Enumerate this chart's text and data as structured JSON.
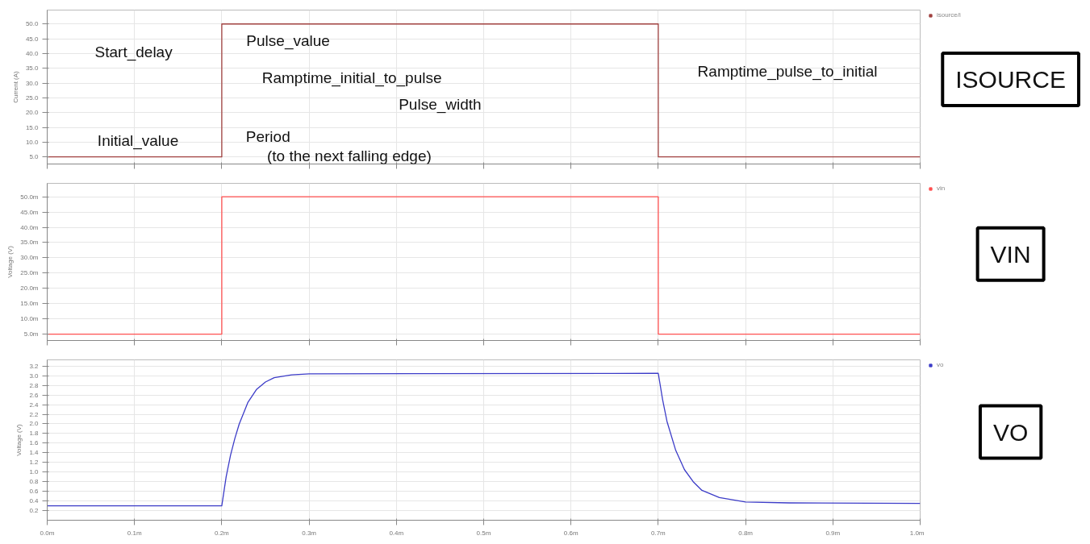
{
  "chart_data": [
    {
      "type": "line",
      "ylabel": "Current (A)",
      "x": [
        0,
        0.2,
        0.2,
        0.7,
        0.7,
        1.0
      ],
      "series": [
        {
          "name": "isource/i",
          "color": "#a0403f",
          "values": [
            5,
            5,
            50,
            50,
            5,
            5
          ]
        }
      ],
      "xlim": [
        0,
        1.0
      ],
      "xticks": [
        0,
        0.1,
        0.2,
        0.3,
        0.4,
        0.5,
        0.6,
        0.7,
        0.8,
        0.9,
        1.0
      ],
      "ylim": [
        2.6,
        54.7
      ],
      "yticks": [
        {
          "value": 5,
          "label": "5.0"
        },
        {
          "value": 10,
          "label": "10.0"
        },
        {
          "value": 15,
          "label": "15.0"
        },
        {
          "value": 20,
          "label": "20.0"
        },
        {
          "value": 25,
          "label": "25.0"
        },
        {
          "value": 30,
          "label": "30.0"
        },
        {
          "value": 35,
          "label": "35.0"
        },
        {
          "value": 40,
          "label": "40.0"
        },
        {
          "value": 45,
          "label": "45.0"
        },
        {
          "value": 50,
          "label": "50.0"
        }
      ],
      "grid": true,
      "legend": "top right",
      "tick_labels": "y",
      "annotations": [
        "Start_delay",
        "Pulse_value",
        "Ramptime_initial_to_pulse",
        "Ramptime_pulse_to_initial",
        "Pulse_width",
        "Initial_value",
        "Period",
        "(to the next falling edge)",
        "ISOURCE"
      ]
    },
    {
      "type": "line",
      "ylabel": "Voltage (V)",
      "x": [
        0,
        0.2,
        0.2,
        0.7,
        0.7,
        1.0
      ],
      "series": [
        {
          "name": "vin",
          "color": "#ff5050",
          "values": [
            5,
            5,
            50,
            50,
            5,
            5
          ]
        }
      ],
      "xlim": [
        0,
        1.0
      ],
      "xticks": [
        0,
        0.1,
        0.2,
        0.3,
        0.4,
        0.5,
        0.6,
        0.7,
        0.8,
        0.9,
        1.0
      ],
      "ylim": [
        2.9,
        54.4
      ],
      "yticks": [
        {
          "value": 5,
          "label": "5.0m"
        },
        {
          "value": 10,
          "label": "10.0m"
        },
        {
          "value": 15,
          "label": "15.0m"
        },
        {
          "value": 20,
          "label": "20.0m"
        },
        {
          "value": 25,
          "label": "25.0m"
        },
        {
          "value": 30,
          "label": "30.0m"
        },
        {
          "value": 35,
          "label": "35.0m"
        },
        {
          "value": 40,
          "label": "40.0m"
        },
        {
          "value": 45,
          "label": "45.0m"
        },
        {
          "value": 50,
          "label": "50.0m"
        }
      ],
      "grid": true,
      "legend": "top right",
      "tick_labels": "y",
      "annotations": [
        "VIN"
      ]
    },
    {
      "type": "line",
      "ylabel": "Voltage (V)",
      "x": [
        0,
        0.2,
        0.205,
        0.21,
        0.215,
        0.22,
        0.23,
        0.24,
        0.25,
        0.26,
        0.28,
        0.3,
        0.7,
        0.705,
        0.71,
        0.72,
        0.73,
        0.74,
        0.75,
        0.77,
        0.8,
        0.85,
        1.0
      ],
      "series": [
        {
          "name": "vo",
          "color": "#3c3cc8",
          "values": [
            0.3,
            0.3,
            0.9,
            1.35,
            1.7,
            2.0,
            2.45,
            2.72,
            2.87,
            2.96,
            3.02,
            3.04,
            3.05,
            2.5,
            2.05,
            1.45,
            1.05,
            0.8,
            0.62,
            0.47,
            0.38,
            0.36,
            0.35
          ]
        }
      ],
      "xlim": [
        0,
        1.0
      ],
      "xticks": [
        {
          "value": 0,
          "label": "0.0m"
        },
        {
          "value": 0.1,
          "label": "0.1m"
        },
        {
          "value": 0.2,
          "label": "0.2m"
        },
        {
          "value": 0.3,
          "label": "0.3m"
        },
        {
          "value": 0.4,
          "label": "0.4m"
        },
        {
          "value": 0.5,
          "label": "0.5m"
        },
        {
          "value": 0.6,
          "label": "0.6m"
        },
        {
          "value": 0.7,
          "label": "0.7m"
        },
        {
          "value": 0.8,
          "label": "0.8m"
        },
        {
          "value": 0.9,
          "label": "0.9m"
        },
        {
          "value": 1.0,
          "label": "1.0m"
        }
      ],
      "ylim": [
        0,
        3.33
      ],
      "yticks": [
        {
          "value": 0.2,
          "label": "0.2"
        },
        {
          "value": 0.4,
          "label": "0.4"
        },
        {
          "value": 0.6,
          "label": "0.6"
        },
        {
          "value": 0.8,
          "label": "0.8"
        },
        {
          "value": 1.0,
          "label": "1.0"
        },
        {
          "value": 1.2,
          "label": "1.2"
        },
        {
          "value": 1.4,
          "label": "1.4"
        },
        {
          "value": 1.6,
          "label": "1.6"
        },
        {
          "value": 1.8,
          "label": "1.8"
        },
        {
          "value": 2.0,
          "label": "2.0"
        },
        {
          "value": 2.2,
          "label": "2.2"
        },
        {
          "value": 2.4,
          "label": "2.4"
        },
        {
          "value": 2.6,
          "label": "2.6"
        },
        {
          "value": 2.8,
          "label": "2.8"
        },
        {
          "value": 3.0,
          "label": "3.0"
        },
        {
          "value": 3.2,
          "label": "3.2"
        }
      ],
      "grid": true,
      "legend": "top right",
      "annotations": [
        "VO"
      ]
    }
  ]
}
